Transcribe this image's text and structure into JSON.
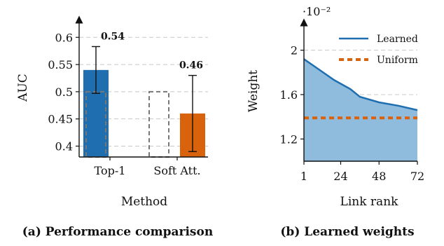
{
  "chart_data": [
    {
      "type": "bar",
      "caption": "(a) Performance comparison",
      "xlabel": "Method",
      "ylabel": "AUC",
      "ylim": [
        0.38,
        0.63
      ],
      "yticks": [
        0.4,
        0.45,
        0.5,
        0.55,
        0.6
      ],
      "ytick_labels": [
        "0.4",
        "0.45",
        "0.5",
        "0.55",
        "0.6"
      ],
      "grid": "horizontal dashed",
      "categories": [
        "Top-1",
        "Soft Att."
      ],
      "values": [
        0.54,
        0.46
      ],
      "errors": [
        0.043,
        0.07
      ],
      "data_labels": [
        "0.54",
        "0.46"
      ],
      "reference_values": [
        0.5,
        0.5
      ],
      "colors": [
        "#1f6fb0",
        "#d9620c"
      ],
      "reference_color": "#777777"
    },
    {
      "type": "area",
      "caption": "(b) Learned weights",
      "xlabel": "Link rank",
      "ylabel": "Weight",
      "y_scale_label": "·10⁻²",
      "xlim": [
        1,
        72
      ],
      "ylim": [
        1.0,
        2.25
      ],
      "xticks": [
        1,
        24,
        48,
        72
      ],
      "yticks": [
        1.2,
        1.6,
        2.0
      ],
      "ytick_labels": [
        "1.2",
        "1.6",
        "2"
      ],
      "grid": "horizontal dashed",
      "legend": "top-right",
      "series": [
        {
          "name": "Learned",
          "style": "solid-filled",
          "color": "#1f6fb0",
          "fill": "#8fbcdc",
          "x": [
            1,
            10,
            20,
            30,
            36,
            48,
            60,
            72
          ],
          "values": [
            1.92,
            1.83,
            1.73,
            1.65,
            1.58,
            1.53,
            1.5,
            1.46
          ]
        },
        {
          "name": "Uniform",
          "style": "dashed",
          "color": "#d9620c",
          "x": [
            1,
            72
          ],
          "values": [
            1.39,
            1.39
          ]
        }
      ]
    }
  ]
}
